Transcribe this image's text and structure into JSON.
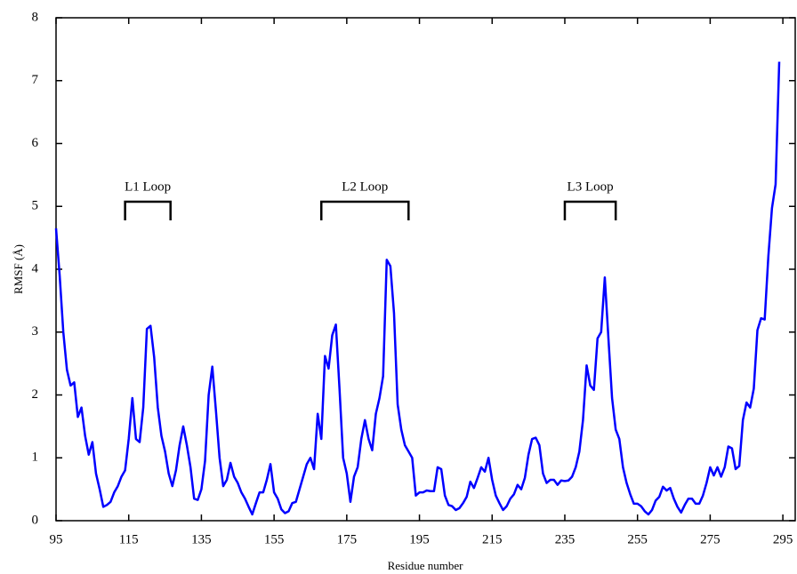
{
  "chart_data": {
    "type": "line",
    "xlabel": "Residue number",
    "ylabel": "RMSF (Å)",
    "color": "#0000ff",
    "xlim": [
      95,
      298.4
    ],
    "ylim": [
      0,
      8
    ],
    "xticks": [
      95,
      115,
      135,
      155,
      175,
      195,
      215,
      235,
      255,
      275,
      295
    ],
    "yticks": [
      0,
      1,
      2,
      3,
      4,
      5,
      6,
      7,
      8
    ],
    "annotations": [
      {
        "text": "L1 Loop",
        "range": [
          114,
          126.5
        ]
      },
      {
        "text": "L2 Loop",
        "range": [
          168,
          192
        ]
      },
      {
        "text": "L3 Loop",
        "range": [
          235,
          249
        ]
      }
    ],
    "x": [
      95,
      96,
      97,
      98,
      99,
      100,
      101,
      102,
      103,
      104,
      105,
      106,
      107,
      108,
      109,
      110,
      111,
      112,
      113,
      114,
      115,
      116,
      117,
      118,
      119,
      120,
      121,
      122,
      123,
      124,
      125,
      126,
      127,
      128,
      129,
      130,
      131,
      132,
      133,
      134,
      135,
      136,
      137,
      138,
      139,
      140,
      141,
      142,
      143,
      144,
      145,
      146,
      147,
      148,
      149,
      150,
      151,
      152,
      153,
      154,
      155,
      156,
      157,
      158,
      159,
      160,
      161,
      162,
      163,
      164,
      165,
      166,
      167,
      168,
      169,
      170,
      171,
      172,
      173,
      174,
      175,
      176,
      177,
      178,
      179,
      180,
      181,
      182,
      183,
      184,
      185,
      186,
      187,
      188,
      189,
      190,
      191,
      192,
      193,
      194,
      195,
      196,
      197,
      198,
      199,
      200,
      201,
      202,
      203,
      204,
      205,
      206,
      207,
      208,
      209,
      210,
      211,
      212,
      213,
      214,
      215,
      216,
      217,
      218,
      219,
      220,
      221,
      222,
      223,
      224,
      225,
      226,
      227,
      228,
      229,
      230,
      231,
      232,
      233,
      234,
      235,
      236,
      237,
      238,
      239,
      240,
      241,
      242,
      243,
      244,
      245,
      246,
      247,
      248,
      249,
      250,
      251,
      252,
      253,
      254,
      255,
      256,
      257,
      258,
      259,
      260,
      261,
      262,
      263,
      264,
      265,
      266,
      267,
      268,
      269,
      270,
      271,
      272,
      273,
      274,
      275,
      276,
      277,
      278,
      279,
      280,
      281,
      282,
      283,
      284,
      285,
      286,
      287,
      288,
      289,
      290,
      291,
      292,
      293,
      294
    ],
    "values": [
      4.65,
      3.9,
      3.0,
      2.4,
      2.15,
      2.2,
      1.65,
      1.8,
      1.35,
      1.05,
      1.25,
      0.75,
      0.5,
      0.22,
      0.25,
      0.3,
      0.45,
      0.55,
      0.7,
      0.8,
      1.3,
      1.95,
      1.3,
      1.25,
      1.8,
      3.05,
      3.1,
      2.6,
      1.8,
      1.35,
      1.1,
      0.75,
      0.55,
      0.8,
      1.2,
      1.5,
      1.2,
      0.85,
      0.35,
      0.33,
      0.5,
      0.95,
      2.0,
      2.45,
      1.75,
      1.0,
      0.55,
      0.65,
      0.92,
      0.7,
      0.6,
      0.45,
      0.35,
      0.22,
      0.1,
      0.28,
      0.45,
      0.45,
      0.65,
      0.9,
      0.45,
      0.35,
      0.18,
      0.12,
      0.15,
      0.28,
      0.3,
      0.5,
      0.7,
      0.9,
      1.0,
      0.82,
      1.7,
      1.3,
      2.62,
      2.42,
      2.95,
      3.12,
      2.1,
      1.0,
      0.75,
      0.3,
      0.7,
      0.85,
      1.3,
      1.6,
      1.3,
      1.12,
      1.7,
      1.95,
      2.3,
      4.15,
      4.05,
      3.3,
      1.85,
      1.45,
      1.2,
      1.1,
      1.0,
      0.4,
      0.45,
      0.45,
      0.48,
      0.47,
      0.47,
      0.85,
      0.82,
      0.4,
      0.25,
      0.23,
      0.17,
      0.2,
      0.28,
      0.38,
      0.62,
      0.52,
      0.68,
      0.85,
      0.78,
      1.0,
      0.65,
      0.4,
      0.28,
      0.17,
      0.23,
      0.35,
      0.42,
      0.57,
      0.5,
      0.68,
      1.05,
      1.3,
      1.32,
      1.2,
      0.75,
      0.6,
      0.65,
      0.65,
      0.57,
      0.64,
      0.63,
      0.64,
      0.7,
      0.85,
      1.1,
      1.6,
      2.47,
      2.15,
      2.08,
      2.9,
      3.0,
      3.87,
      2.9,
      1.95,
      1.45,
      1.3,
      0.85,
      0.6,
      0.42,
      0.27,
      0.27,
      0.23,
      0.15,
      0.1,
      0.17,
      0.32,
      0.38,
      0.54,
      0.48,
      0.52,
      0.35,
      0.22,
      0.13,
      0.25,
      0.35,
      0.35,
      0.27,
      0.27,
      0.4,
      0.6,
      0.85,
      0.72,
      0.85,
      0.7,
      0.85,
      1.18,
      1.15,
      0.82,
      0.87,
      1.6,
      1.88,
      1.8,
      2.1,
      3.03,
      3.22,
      3.2,
      4.2,
      4.97,
      5.35,
      7.3
    ]
  }
}
